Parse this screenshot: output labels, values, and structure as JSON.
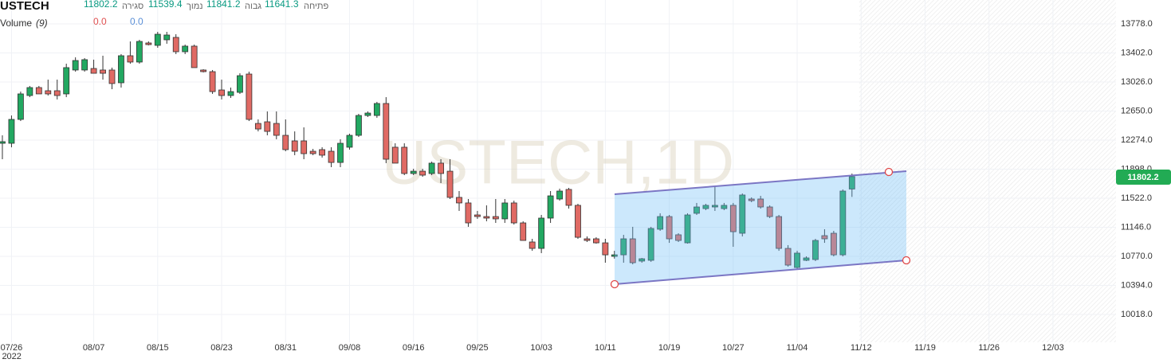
{
  "chart_data": {
    "type": "candlestick",
    "title": "USTECH",
    "watermark": "USTECH,1D",
    "ohlc_labels": {
      "open": "פתיחה",
      "high": "גבוה",
      "low": "נמוך",
      "close": "סגירה"
    },
    "volume_label": "Volume",
    "volume_params": "(9)",
    "volume_readouts": [
      {
        "value": 0,
        "label": "0.0",
        "color": "#e05050"
      },
      {
        "value": 0,
        "label": "0.0",
        "color": "#5b8fd6"
      }
    ],
    "up_color": "#22a861",
    "down_color": "#e06a64",
    "x": [
      0,
      1,
      2,
      3,
      4,
      5,
      6,
      7,
      8,
      9,
      10,
      11,
      12,
      13,
      14,
      15,
      16,
      17,
      18,
      19,
      20,
      21,
      22,
      23,
      24,
      25,
      26,
      27,
      28,
      29,
      30,
      31,
      32,
      33,
      34,
      35,
      36,
      37,
      38,
      39,
      40,
      41,
      42,
      43,
      44,
      45,
      46,
      47,
      48,
      49,
      50,
      51,
      52,
      53,
      54,
      55,
      56,
      57,
      58,
      59,
      60,
      61,
      62,
      63,
      64,
      65,
      66,
      67,
      68,
      69,
      70,
      71,
      72,
      73,
      74,
      75,
      76,
      77,
      78,
      79,
      80,
      81,
      82,
      83,
      84,
      85,
      86,
      87,
      88,
      89,
      90,
      91,
      92,
      93
    ],
    "open": [
      12233,
      12233,
      12542,
      12851,
      12954,
      12913,
      12913,
      12872,
      13181,
      13181,
      13201,
      13181,
      13181,
      13016,
      13366,
      13284,
      13531,
      13500,
      13572,
      13603,
      13418,
      13490,
      13181,
      13160,
      12923,
      12851,
      12892,
      13129,
      12490,
      12511,
      12490,
      12336,
      12264,
      12264,
      12130,
      12151,
      12130,
      11985,
      12182,
      12336,
      12593,
      12593,
      12748,
      12182,
      12182,
      11842,
      11872,
      11842,
      11976,
      11872,
      11533,
      11461,
      11306,
      11285,
      11285,
      11255,
      11461,
      11203,
      10956,
      10873,
      11265,
      11512,
      11636,
      11430,
      10997,
      10997,
      10945,
      10770,
      10790,
      10997,
      10709,
      10719,
      11121,
      11285,
      11049,
      10945,
      11327,
      11388,
      11409,
      11388,
      11430,
      11069,
      11512,
      11512,
      11409,
      11285,
      10873,
      10626,
      10719,
      10729,
      11038,
      11069,
      10790,
      11641.3
    ],
    "high": [
      12336,
      12593,
      12902,
      12975,
      12975,
      13057,
      13057,
      13263,
      13345,
      13335,
      13315,
      13366,
      13212,
      13387,
      13551,
      13572,
      13551,
      13675,
      13675,
      13644,
      13510,
      13510,
      13191,
      13181,
      13057,
      12954,
      13139,
      13160,
      12542,
      12645,
      12645,
      12542,
      12387,
      12439,
      12161,
      12182,
      12182,
      12285,
      12357,
      12614,
      12645,
      12769,
      12830,
      12233,
      12233,
      11903,
      11903,
      11996,
      12027,
      12027,
      11615,
      11512,
      11358,
      11430,
      11512,
      11512,
      11491,
      11224,
      10997,
      11306,
      11615,
      11646,
      11656,
      11450,
      11028,
      11017,
      10997,
      10842,
      11048,
      11152,
      10750,
      11152,
      11327,
      11306,
      11069,
      11327,
      11461,
      11450,
      11677,
      11461,
      11461,
      11584,
      11533,
      11553,
      11430,
      11306,
      10915,
      10842,
      10770,
      10997,
      11121,
      11100,
      11636,
      11841.2
    ],
    "low": [
      12027,
      12181,
      12521,
      12830,
      12872,
      12851,
      12800,
      12830,
      13160,
      13160,
      13139,
      13057,
      12933,
      12954,
      13263,
      13263,
      13500,
      13469,
      13521,
      13387,
      13387,
      13212,
      13150,
      12872,
      12800,
      12820,
      12872,
      12521,
      12387,
      12336,
      12285,
      12130,
      12079,
      12027,
      12079,
      12048,
      11924,
      11924,
      12151,
      12315,
      12573,
      12563,
      11976,
      11976,
      11821,
      11821,
      11800,
      11821,
      11718,
      11512,
      11358,
      11152,
      11255,
      11224,
      11203,
      11203,
      11182,
      10976,
      10842,
      10812,
      11203,
      11491,
      11388,
      10997,
      10956,
      10935,
      10688,
      10740,
      10688,
      10667,
      10688,
      10699,
      11100,
      10945,
      10956,
      10935,
      11306,
      11368,
      11358,
      11368,
      10894,
      11028,
      11471,
      11388,
      11265,
      10842,
      10637,
      10605,
      10709,
      10709,
      10945,
      10770,
      10770,
      11539.4
    ],
    "close": [
      12254,
      12542,
      12872,
      12954,
      12872,
      12872,
      12851,
      13212,
      13304,
      13315,
      13139,
      13139,
      13006,
      13366,
      13284,
      13551,
      13510,
      13644,
      13634,
      13418,
      13490,
      13212,
      13160,
      12902,
      12851,
      12902,
      13108,
      12542,
      12418,
      12387,
      12336,
      12151,
      12130,
      12099,
      12099,
      12079,
      11985,
      12233,
      12336,
      12593,
      12624,
      12748,
      12027,
      11976,
      11842,
      11872,
      11821,
      11976,
      11842,
      11533,
      11461,
      11203,
      11285,
      11265,
      11255,
      11461,
      11203,
      10976,
      10873,
      11265,
      11553,
      11615,
      11430,
      11017,
      10976,
      10945,
      10790,
      10790,
      10997,
      10688,
      10739,
      11131,
      11285,
      10997,
      10976,
      11306,
      11409,
      11430,
      11430,
      11430,
      11089,
      11564,
      11491,
      11409,
      11285,
      10873,
      10657,
      10812,
      10750,
      10976,
      10997,
      10790,
      11615,
      11802.2
    ],
    "xlim": [
      -0.26,
      121.9
    ],
    "xticks": [
      {
        "value": 1,
        "label": "07/26"
      },
      {
        "value": 10,
        "label": "08/07"
      },
      {
        "value": 17,
        "label": "08/15"
      },
      {
        "value": 24,
        "label": "08/23"
      },
      {
        "value": 31,
        "label": "08/31"
      },
      {
        "value": 38,
        "label": "09/08"
      },
      {
        "value": 45,
        "label": "09/16"
      },
      {
        "value": 52,
        "label": "09/25"
      },
      {
        "value": 59,
        "label": "10/03"
      },
      {
        "value": 66,
        "label": "10/11"
      },
      {
        "value": 73,
        "label": "10/19"
      },
      {
        "value": 80,
        "label": "10/27"
      },
      {
        "value": 87,
        "label": "11/04"
      },
      {
        "value": 94,
        "label": "11/12"
      },
      {
        "value": 101,
        "label": "11/19"
      },
      {
        "value": 108,
        "label": "11/26"
      },
      {
        "value": 115,
        "label": "12/03"
      }
    ],
    "x_year_label": "2022",
    "ylim": [
      9658,
      14087
    ],
    "yticks": [
      {
        "value": 13778,
        "label": "13778.0"
      },
      {
        "value": 13402,
        "label": "13402.0"
      },
      {
        "value": 13026,
        "label": "13026.0"
      },
      {
        "value": 12650,
        "label": "12650.0"
      },
      {
        "value": 12274,
        "label": "12274.0"
      },
      {
        "value": 11898,
        "label": "11898.0"
      },
      {
        "value": 11522,
        "label": "11522.0"
      },
      {
        "value": 11146,
        "label": "11146.0"
      },
      {
        "value": 10770,
        "label": "10770.0"
      },
      {
        "value": 10394,
        "label": "10394.0"
      },
      {
        "value": 10018,
        "label": "10018.0"
      }
    ],
    "grid": true
  }
}
